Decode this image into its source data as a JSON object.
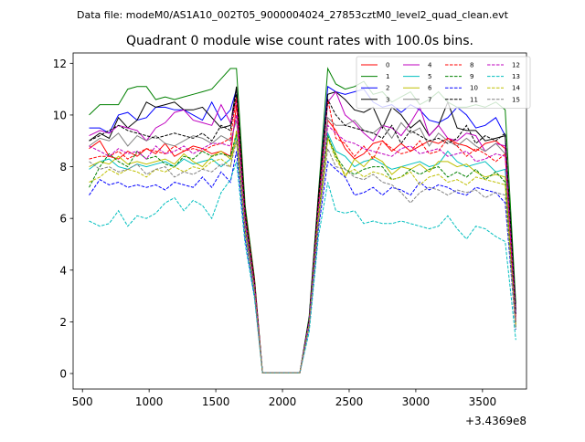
{
  "figure": {
    "suptitle": "Data file: modeM0/AS1A10_002T05_9000004024_27853cztM0_level2_quad_clean.evt",
    "title": "Quadrant 0 module wise count rates with 100.0s bins."
  },
  "chart_data": {
    "type": "line",
    "title": "Quadrant 0 module wise count rates with 100.0s bins.",
    "xlabel": "",
    "ylabel": "",
    "x_offset_label": "+3.4369e8",
    "xlim": [
      430,
      3830
    ],
    "ylim": [
      -0.6,
      12.4
    ],
    "xticks": [
      500,
      1000,
      1500,
      2000,
      2500,
      3000,
      3500
    ],
    "xtick_labels": [
      "500",
      "1000",
      "1500",
      "2000",
      "2500",
      "3000",
      "3500"
    ],
    "yticks": [
      0,
      2,
      4,
      6,
      8,
      10,
      12
    ],
    "ytick_labels": [
      "0",
      "2",
      "4",
      "6",
      "8",
      "10",
      "12"
    ],
    "grid": false,
    "legend_placement": "top-right",
    "legend_columns": 4,
    "x": [
      550,
      630,
      700,
      770,
      840,
      910,
      980,
      1050,
      1120,
      1190,
      1260,
      1330,
      1400,
      1470,
      1540,
      1610,
      1655,
      1720,
      1790,
      1850,
      1920,
      1990,
      2060,
      2130,
      2200,
      2270,
      2340,
      2400,
      2470,
      2540,
      2610,
      2680,
      2750,
      2820,
      2890,
      2960,
      3030,
      3100,
      3170,
      3240,
      3310,
      3380,
      3450,
      3520,
      3600,
      3670,
      3750
    ],
    "series": [
      {
        "name": "0",
        "color": "#ff0000",
        "style": "solid",
        "values": [
          8.7,
          9.0,
          8.4,
          8.3,
          8.6,
          8.4,
          8.7,
          8.5,
          8.9,
          8.4,
          8.6,
          8.8,
          8.7,
          8.5,
          8.6,
          8.4,
          10.4,
          6.0,
          3.5,
          0.02,
          0.02,
          0.02,
          0.02,
          0.02,
          2.0,
          6.5,
          9.8,
          9.4,
          8.7,
          8.3,
          8.5,
          8.9,
          9.0,
          8.6,
          8.9,
          8.6,
          8.8,
          9.0,
          8.9,
          9.1,
          8.9,
          8.8,
          8.6,
          8.9,
          9.0,
          8.7,
          2.2
        ]
      },
      {
        "name": "1",
        "color": "#008000",
        "style": "solid",
        "values": [
          10.0,
          10.4,
          10.4,
          10.4,
          11.0,
          11.1,
          11.1,
          10.6,
          10.7,
          10.6,
          10.7,
          10.8,
          10.9,
          11.0,
          11.4,
          11.8,
          11.8,
          6.5,
          3.7,
          0.02,
          0.02,
          0.02,
          0.02,
          0.02,
          2.2,
          7.0,
          11.8,
          11.2,
          11.0,
          11.1,
          11.3,
          10.8,
          10.9,
          10.5,
          10.7,
          10.9,
          10.4,
          10.6,
          10.9,
          10.5,
          10.3,
          10.3,
          10.4,
          10.3,
          10.5,
          10.2,
          2.7
        ]
      },
      {
        "name": "2",
        "color": "#0000ff",
        "style": "solid",
        "values": [
          9.5,
          9.5,
          9.3,
          10.0,
          10.1,
          9.8,
          9.9,
          10.3,
          10.3,
          10.2,
          10.2,
          10.0,
          9.8,
          10.5,
          9.8,
          10.2,
          11.0,
          6.2,
          3.5,
          0.02,
          0.02,
          0.02,
          0.02,
          0.02,
          2.1,
          6.8,
          11.1,
          10.9,
          10.8,
          10.9,
          11.0,
          10.5,
          10.3,
          10.4,
          10.1,
          10.4,
          10.2,
          9.8,
          9.7,
          9.9,
          10.3,
          10.0,
          9.5,
          9.6,
          9.9,
          9.2,
          2.4
        ]
      },
      {
        "name": "3",
        "color": "#000000",
        "style": "solid",
        "values": [
          9.0,
          9.3,
          9.1,
          9.9,
          9.5,
          9.8,
          10.5,
          10.3,
          10.4,
          10.5,
          10.2,
          10.2,
          10.3,
          9.9,
          9.5,
          9.6,
          11.1,
          6.3,
          3.6,
          0.02,
          0.02,
          0.02,
          0.02,
          0.02,
          2.1,
          6.9,
          10.8,
          10.9,
          10.6,
          10.2,
          10.1,
          10.3,
          9.5,
          10.3,
          10.0,
          9.5,
          9.8,
          9.2,
          9.6,
          10.5,
          9.5,
          9.4,
          9.4,
          9.0,
          9.1,
          9.2,
          2.5
        ]
      },
      {
        "name": "4",
        "color": "#bf00bf",
        "style": "solid",
        "values": [
          9.2,
          9.4,
          9.3,
          9.6,
          9.5,
          9.4,
          9.0,
          9.5,
          9.7,
          10.1,
          10.2,
          9.8,
          9.7,
          9.6,
          10.4,
          9.7,
          10.6,
          6.1,
          3.5,
          0.02,
          0.02,
          0.02,
          0.02,
          0.02,
          2.0,
          6.6,
          10.5,
          10.9,
          10.0,
          9.7,
          9.3,
          9.0,
          9.6,
          9.5,
          9.2,
          9.7,
          10.3,
          9.2,
          9.6,
          9.1,
          9.0,
          9.3,
          9.2,
          8.6,
          8.9,
          8.8,
          2.3
        ]
      },
      {
        "name": "5",
        "color": "#00bfbf",
        "style": "solid",
        "values": [
          7.9,
          8.2,
          8.3,
          8.0,
          7.9,
          8.1,
          8.0,
          8.1,
          8.2,
          8.0,
          8.3,
          8.1,
          8.2,
          8.3,
          8.0,
          8.3,
          9.2,
          5.6,
          3.3,
          0.02,
          0.02,
          0.02,
          0.02,
          0.02,
          1.9,
          6.0,
          9.3,
          8.6,
          8.4,
          8.0,
          8.2,
          8.3,
          8.1,
          7.9,
          8.0,
          8.1,
          8.2,
          8.0,
          8.1,
          8.6,
          8.2,
          8.0,
          8.1,
          8.2,
          7.8,
          7.9,
          2.0
        ]
      },
      {
        "name": "6",
        "color": "#bfbf00",
        "style": "solid",
        "values": [
          8.0,
          8.2,
          8.1,
          8.4,
          8.1,
          8.2,
          8.1,
          8.2,
          8.3,
          8.1,
          8.5,
          8.2,
          8.0,
          8.4,
          8.6,
          8.3,
          9.0,
          5.5,
          3.2,
          0.02,
          0.02,
          0.02,
          0.02,
          0.02,
          1.9,
          5.9,
          9.1,
          8.5,
          7.6,
          8.3,
          8.0,
          8.4,
          8.2,
          7.7,
          8.0,
          7.9,
          8.1,
          7.8,
          8.2,
          8.2,
          8.0,
          8.1,
          7.8,
          7.6,
          7.7,
          7.6,
          1.9
        ]
      },
      {
        "name": "7",
        "color": "#808080",
        "style": "solid",
        "values": [
          8.8,
          9.1,
          9.0,
          9.3,
          8.8,
          9.2,
          9.0,
          9.2,
          8.9,
          8.8,
          9.0,
          9.2,
          9.1,
          8.9,
          9.2,
          9.0,
          9.8,
          5.9,
          3.4,
          0.02,
          0.02,
          0.02,
          0.02,
          0.02,
          2.0,
          6.3,
          9.9,
          9.6,
          9.6,
          9.8,
          9.4,
          9.3,
          9.6,
          9.1,
          9.7,
          9.3,
          9.5,
          8.8,
          9.3,
          9.0,
          8.8,
          9.1,
          8.8,
          8.6,
          8.9,
          8.5,
          2.1
        ]
      },
      {
        "name": "8",
        "color": "#ff0000",
        "style": "dashed",
        "values": [
          8.3,
          8.4,
          8.4,
          8.6,
          8.3,
          8.5,
          8.7,
          8.6,
          8.5,
          8.8,
          8.6,
          8.7,
          8.6,
          8.8,
          8.9,
          9.1,
          10.7,
          6.2,
          3.6,
          0.02,
          0.02,
          0.02,
          0.02,
          0.02,
          2.0,
          6.6,
          10.6,
          9.1,
          8.9,
          8.4,
          8.8,
          8.3,
          9.0,
          8.7,
          8.5,
          8.6,
          9.0,
          8.5,
          8.6,
          9.1,
          8.8,
          8.4,
          8.7,
          8.5,
          8.2,
          8.5,
          1.9
        ]
      },
      {
        "name": "9",
        "color": "#008000",
        "style": "dashed",
        "values": [
          7.2,
          8.0,
          8.5,
          8.2,
          8.0,
          8.6,
          8.3,
          8.4,
          8.1,
          8.0,
          8.4,
          8.3,
          8.6,
          8.4,
          8.5,
          8.4,
          9.3,
          5.6,
          3.3,
          0.02,
          0.02,
          0.02,
          0.02,
          0.02,
          1.9,
          6.1,
          9.2,
          8.4,
          7.9,
          7.7,
          7.9,
          8.0,
          8.0,
          7.5,
          7.6,
          7.9,
          7.7,
          7.9,
          8.0,
          7.6,
          7.8,
          7.6,
          7.9,
          7.5,
          7.8,
          7.4,
          1.8
        ]
      },
      {
        "name": "10",
        "color": "#0000ff",
        "style": "dashed",
        "values": [
          6.9,
          7.5,
          7.3,
          7.4,
          7.2,
          7.3,
          7.2,
          7.3,
          7.1,
          7.4,
          7.3,
          7.2,
          7.6,
          7.2,
          7.8,
          7.4,
          8.6,
          5.2,
          3.0,
          0.02,
          0.02,
          0.02,
          0.02,
          0.02,
          1.8,
          5.6,
          8.2,
          7.9,
          7.6,
          6.9,
          7.0,
          7.2,
          6.9,
          7.2,
          7.1,
          6.9,
          7.4,
          7.1,
          7.3,
          7.2,
          7.0,
          6.9,
          7.2,
          7.1,
          7.0,
          6.6,
          1.7
        ]
      },
      {
        "name": "11",
        "color": "#000000",
        "style": "dashed",
        "values": [
          9.0,
          9.2,
          9.4,
          9.6,
          9.4,
          9.3,
          9.2,
          9.1,
          9.2,
          9.3,
          9.2,
          9.1,
          9.3,
          9.0,
          9.6,
          9.4,
          10.9,
          6.1,
          3.5,
          0.02,
          0.02,
          0.02,
          0.02,
          0.02,
          2.1,
          6.7,
          10.6,
          10.0,
          9.6,
          9.5,
          9.4,
          9.3,
          9.1,
          9.6,
          8.9,
          9.4,
          9.2,
          9.0,
          9.1,
          8.9,
          9.1,
          9.6,
          8.9,
          9.2,
          9.0,
          9.3,
          2.3
        ]
      },
      {
        "name": "12",
        "color": "#bf00bf",
        "style": "dashed",
        "values": [
          8.8,
          8.6,
          8.4,
          8.7,
          8.5,
          8.6,
          8.3,
          8.8,
          8.5,
          8.6,
          8.8,
          8.5,
          8.7,
          8.9,
          8.9,
          8.8,
          10.0,
          5.8,
          3.4,
          0.02,
          0.02,
          0.02,
          0.02,
          0.02,
          2.0,
          6.3,
          9.6,
          9.3,
          9.0,
          8.9,
          8.7,
          8.6,
          8.5,
          8.4,
          8.7,
          8.8,
          8.5,
          8.6,
          8.7,
          8.4,
          8.5,
          8.6,
          8.2,
          8.3,
          8.5,
          8.4,
          2.0
        ]
      },
      {
        "name": "13",
        "color": "#00bfbf",
        "style": "dashed",
        "values": [
          5.9,
          5.7,
          5.8,
          6.3,
          5.7,
          6.1,
          6.0,
          6.2,
          6.6,
          6.8,
          6.3,
          6.7,
          6.5,
          6.0,
          7.0,
          7.5,
          8.2,
          5.0,
          2.9,
          0.02,
          0.02,
          0.02,
          0.02,
          0.02,
          1.6,
          5.3,
          7.4,
          6.3,
          6.2,
          6.3,
          5.8,
          5.9,
          5.8,
          5.8,
          5.9,
          5.8,
          5.7,
          5.6,
          5.7,
          6.1,
          5.6,
          5.2,
          5.7,
          5.6,
          5.3,
          5.1,
          1.3
        ]
      },
      {
        "name": "14",
        "color": "#bfbf00",
        "style": "dashed",
        "values": [
          7.4,
          7.6,
          7.9,
          7.7,
          7.9,
          7.8,
          7.6,
          7.9,
          7.8,
          8.0,
          7.8,
          8.0,
          7.9,
          8.2,
          8.3,
          8.0,
          9.4,
          5.5,
          3.2,
          0.02,
          0.02,
          0.02,
          0.02,
          0.02,
          1.9,
          6.1,
          9.1,
          8.3,
          7.7,
          7.9,
          7.6,
          7.8,
          7.7,
          7.5,
          7.6,
          7.8,
          7.3,
          7.6,
          7.7,
          7.4,
          7.5,
          7.3,
          7.6,
          7.5,
          7.4,
          7.3,
          1.8
        ]
      },
      {
        "name": "15",
        "color": "#808080",
        "style": "dashed",
        "values": [
          8.2,
          7.9,
          8.0,
          7.8,
          7.9,
          8.1,
          7.7,
          7.9,
          8.0,
          7.6,
          7.8,
          7.7,
          7.9,
          7.8,
          8.1,
          8.0,
          9.0,
          5.4,
          3.1,
          0.02,
          0.02,
          0.02,
          0.02,
          0.02,
          1.8,
          5.8,
          8.7,
          8.0,
          7.9,
          7.6,
          7.5,
          7.7,
          7.4,
          7.3,
          7.0,
          6.6,
          7.0,
          7.2,
          7.1,
          6.9,
          7.1,
          7.0,
          7.1,
          6.8,
          7.0,
          6.9,
          1.7
        ]
      }
    ]
  }
}
